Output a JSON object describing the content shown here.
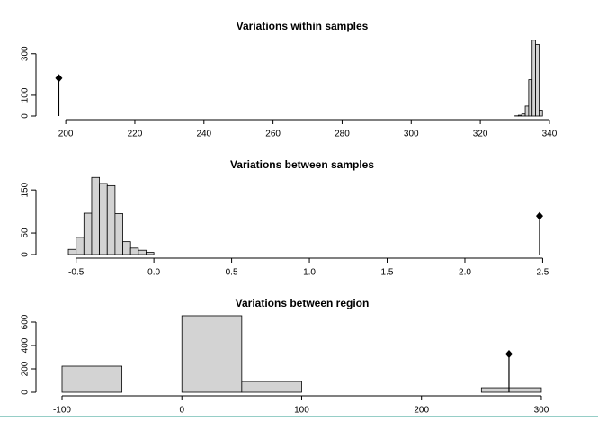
{
  "chart_data": [
    {
      "type": "histogram",
      "title": "Variations within samples",
      "bins": [
        330,
        331,
        332,
        333,
        334,
        335,
        336,
        337,
        338
      ],
      "counts": [
        1,
        4,
        10,
        48,
        175,
        365,
        345,
        28
      ],
      "observed": 198,
      "color": "#d3d3d3",
      "xlim": [
        195.8,
        342.1
      ],
      "xticks": [
        200,
        220,
        240,
        260,
        280,
        300,
        320,
        340
      ],
      "ylim": [
        0,
        390
      ],
      "yticks": [
        0,
        100,
        300
      ]
    },
    {
      "type": "histogram",
      "title": "Variations between samples",
      "bins": [
        -0.55,
        -0.5,
        -0.45,
        -0.4,
        -0.35,
        -0.3,
        -0.25,
        -0.2,
        -0.15,
        -0.1,
        -0.05,
        0
      ],
      "counts": [
        12,
        40,
        96,
        179,
        165,
        160,
        95,
        30,
        15,
        10,
        5
      ],
      "observed": 2.48,
      "color": "#d3d3d3",
      "xlim": [
        -0.66,
        2.59
      ],
      "xticks": [
        -0.5,
        {
          "value": 0,
          "label": "0.0"
        },
        0.5,
        {
          "value": 1,
          "label": "1.0"
        },
        1.5,
        {
          "value": 2,
          "label": "2.0"
        },
        2.5
      ],
      "ylim": [
        0,
        190
      ],
      "yticks": [
        0,
        50,
        150
      ]
    },
    {
      "type": "histogram",
      "title": "Variations between region",
      "bins": [
        -100,
        -50,
        0,
        50,
        100,
        150,
        200,
        250,
        300
      ],
      "counts": [
        223,
        0,
        654,
        92,
        0,
        0,
        0,
        38
      ],
      "observed": 273,
      "color": "#d3d3d3",
      "xlim": [
        -109,
        312.8
      ],
      "xticks": [
        -100,
        0,
        100,
        200,
        300
      ],
      "ylim": [
        0,
        700
      ],
      "yticks": [
        0,
        200,
        400,
        600
      ]
    }
  ]
}
